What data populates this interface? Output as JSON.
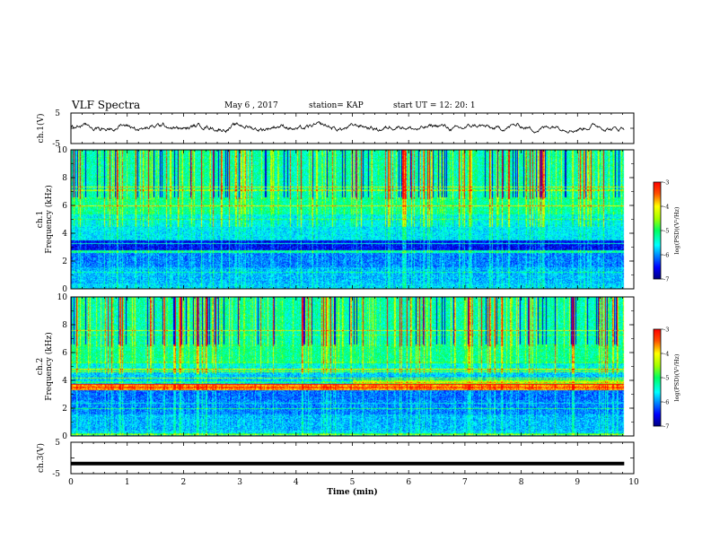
{
  "header": {
    "title": "VLF Spectra",
    "date": "May 6 , 2017",
    "station": "station= KAP",
    "start": "start  UT =   12: 20: 1"
  },
  "chart_data": [
    {
      "type": "line",
      "panel": "ch1-waveform",
      "ylabel": "ch.1(V)",
      "ylim": [
        -5,
        5
      ],
      "yticks": [
        "5",
        "-5"
      ],
      "x_range_min": [
        0,
        9.83
      ],
      "description_values": "noisy waveform fluctuating roughly between -1.5 and 2.5 V around 0"
    },
    {
      "type": "heatmap",
      "panel": "ch1-spectrogram",
      "ylabel": "ch.1\nFrequency (kHz)",
      "ylim": [
        0,
        10
      ],
      "yticks": [
        "0",
        "2",
        "4",
        "6",
        "8",
        "10"
      ],
      "colorbar": {
        "label": "log(PSD)(V²/Hz)",
        "range": [
          -7,
          -3
        ],
        "ticks": [
          "-3",
          "-4",
          "-5",
          "-6",
          "-7"
        ]
      }
    },
    {
      "type": "heatmap",
      "panel": "ch2-spectrogram",
      "ylabel": "ch.2\nFrequency (kHz)",
      "ylim": [
        0,
        10
      ],
      "yticks": [
        "0",
        "2",
        "4",
        "6",
        "8",
        "10"
      ],
      "colorbar": {
        "label": "log(PSD)(V²/Hz)",
        "range": [
          -7,
          -3
        ],
        "ticks": [
          "-3",
          "-4",
          "-5",
          "-6",
          "-7"
        ]
      }
    },
    {
      "type": "line",
      "panel": "ch3-waveform",
      "ylabel": "ch.3(V)",
      "ylim": [
        -5,
        5
      ],
      "yticks": [
        "5",
        "-5"
      ],
      "constant_value": -1.8
    }
  ],
  "xaxis": {
    "label": "Time (min)",
    "range": [
      0,
      10
    ],
    "ticks": [
      "0",
      "1",
      "2",
      "3",
      "4",
      "5",
      "6",
      "7",
      "8",
      "9",
      "10"
    ]
  }
}
